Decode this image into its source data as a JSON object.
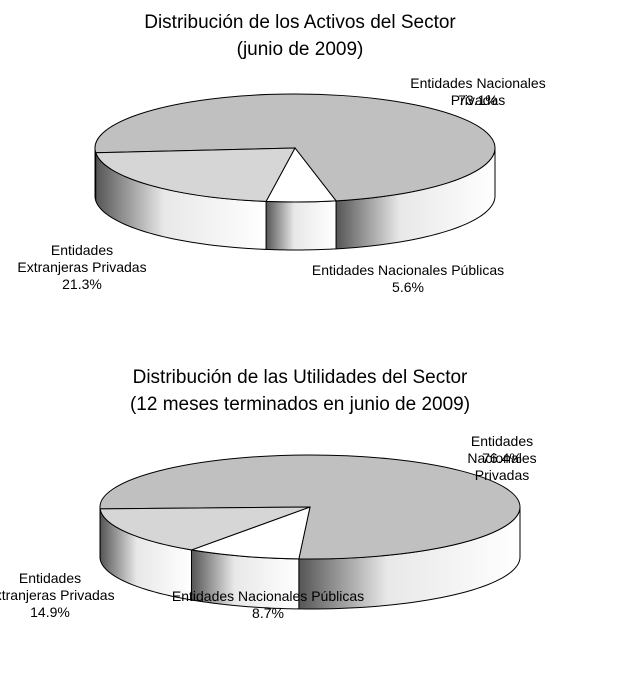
{
  "chart_data": [
    {
      "type": "pie3d",
      "title": "Distribución de los Activos del Sector",
      "subtitle": "(junio de 2009)",
      "categories": [
        "Entidades Nacionales Privadas",
        "Entidades Nacionales Públicas",
        "Entidades\nExtranjeras Privadas"
      ],
      "values": [
        73.1,
        5.6,
        21.3
      ],
      "value_labels": [
        "73.1%",
        "5.6%",
        "21.3%"
      ],
      "colors": [
        "#c0c0c0",
        "#ffffff",
        "#d6d6d6"
      ]
    },
    {
      "type": "pie3d",
      "title": "Distribución de las Utilidades del Sector",
      "subtitle": "(12 meses terminados en junio de 2009)",
      "categories": [
        "Entidades Nacionales Privadas",
        "Entidades Nacionales Públicas",
        "Entidades\nExtranjeras Privadas"
      ],
      "values": [
        76.4,
        8.7,
        14.9
      ],
      "value_labels": [
        "76.4%",
        "8.7%",
        "14.9%"
      ],
      "colors": [
        "#c0c0c0",
        "#ffffff",
        "#d6d6d6"
      ]
    }
  ]
}
